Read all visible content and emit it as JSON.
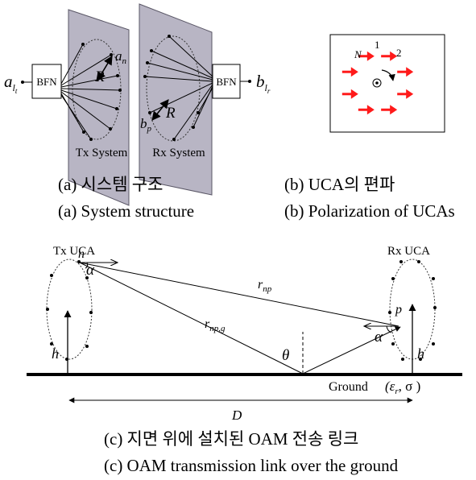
{
  "panel_a": {
    "bfn_label": "BFN",
    "in_label": "a",
    "in_sub": "l",
    "in_subsub": "t",
    "out_label": "b",
    "out_sub": "l",
    "out_subsub": "r",
    "an_label": "a",
    "an_sub": "n",
    "bp_label": "b",
    "bp_sub": "p",
    "radius_label": "R",
    "tx_label": "Tx System",
    "rx_label": "Rx System",
    "caption_kr": "(a) 시스템 구조",
    "caption_en": "(a) System structure"
  },
  "panel_b": {
    "label_1": "1",
    "label_2": "2",
    "label_n": "N",
    "caption_kr": "(b) UCA의 편파",
    "caption_en": "(b) Polarization of UCAs",
    "arrow_color": "#ff1a1a"
  },
  "panel_c": {
    "tx_uca": "Tx UCA",
    "rx_uca": "Rx UCA",
    "n": "n",
    "p": "p",
    "alpha": "α",
    "r_np": "r",
    "r_np_sub": "np",
    "r_npg": "r",
    "r_npg_sub": "np,g",
    "theta": "θ",
    "h": "h",
    "ground": "Ground",
    "eps": "(ε",
    "eps_sub": "r",
    "sigma": ", σ )",
    "D": "D",
    "caption_kr": "(c) 지면 위에 설치된 OAM 전송 링크",
    "caption_en": "(c) OAM transmission link over the ground"
  }
}
